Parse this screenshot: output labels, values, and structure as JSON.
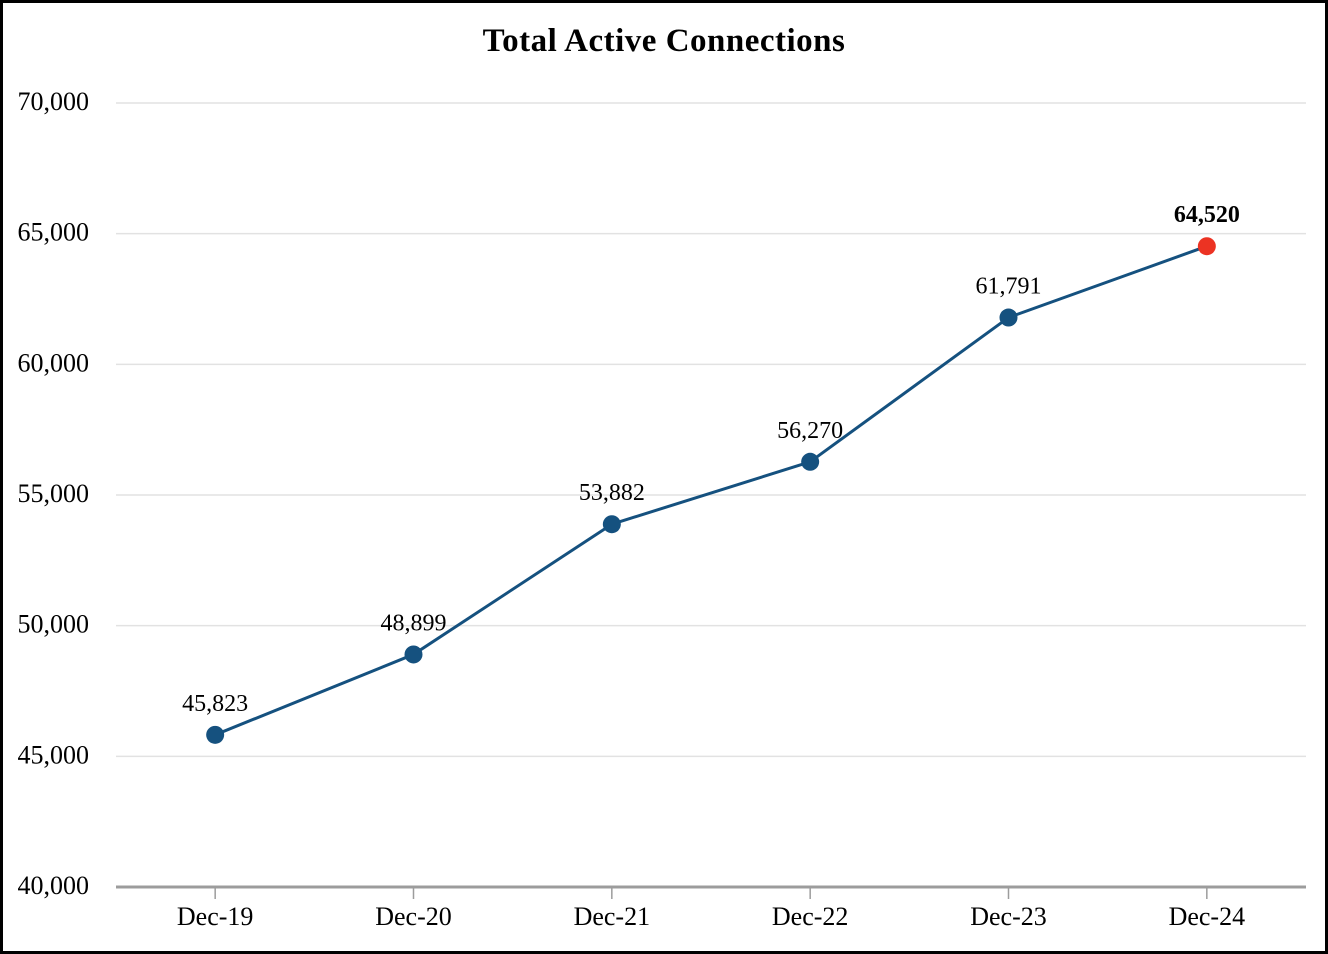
{
  "chart_data": {
    "type": "line",
    "title": "Total Active Connections",
    "categories": [
      "Dec-19",
      "Dec-20",
      "Dec-21",
      "Dec-22",
      "Dec-23",
      "Dec-24"
    ],
    "series": [
      {
        "name": "Total Active Connections",
        "values": [
          45823,
          48899,
          53882,
          56270,
          61791,
          64520
        ],
        "labels": [
          "45,823",
          "48,899",
          "53,882",
          "56,270",
          "61,791",
          "64,520"
        ]
      }
    ],
    "ylim": [
      40000,
      70000
    ],
    "y_tick_interval": 5000,
    "y_tick_labels": [
      "40,000",
      "45,000",
      "50,000",
      "55,000",
      "60,000",
      "65,000",
      "70,000"
    ],
    "xlabel": "",
    "ylabel": "",
    "grid": "horizontal",
    "legend": "none",
    "line_color": "#15517F",
    "marker_color": "#15517F",
    "highlight_last_point": true,
    "highlight_color": "#EC3323",
    "last_label_bold": true,
    "gridline_color": "#E2E2E2",
    "axis_color": "#9C9C9C",
    "text_color": "#000000",
    "frame_border_color": "#000000",
    "background_color": "#FFFFFF"
  }
}
